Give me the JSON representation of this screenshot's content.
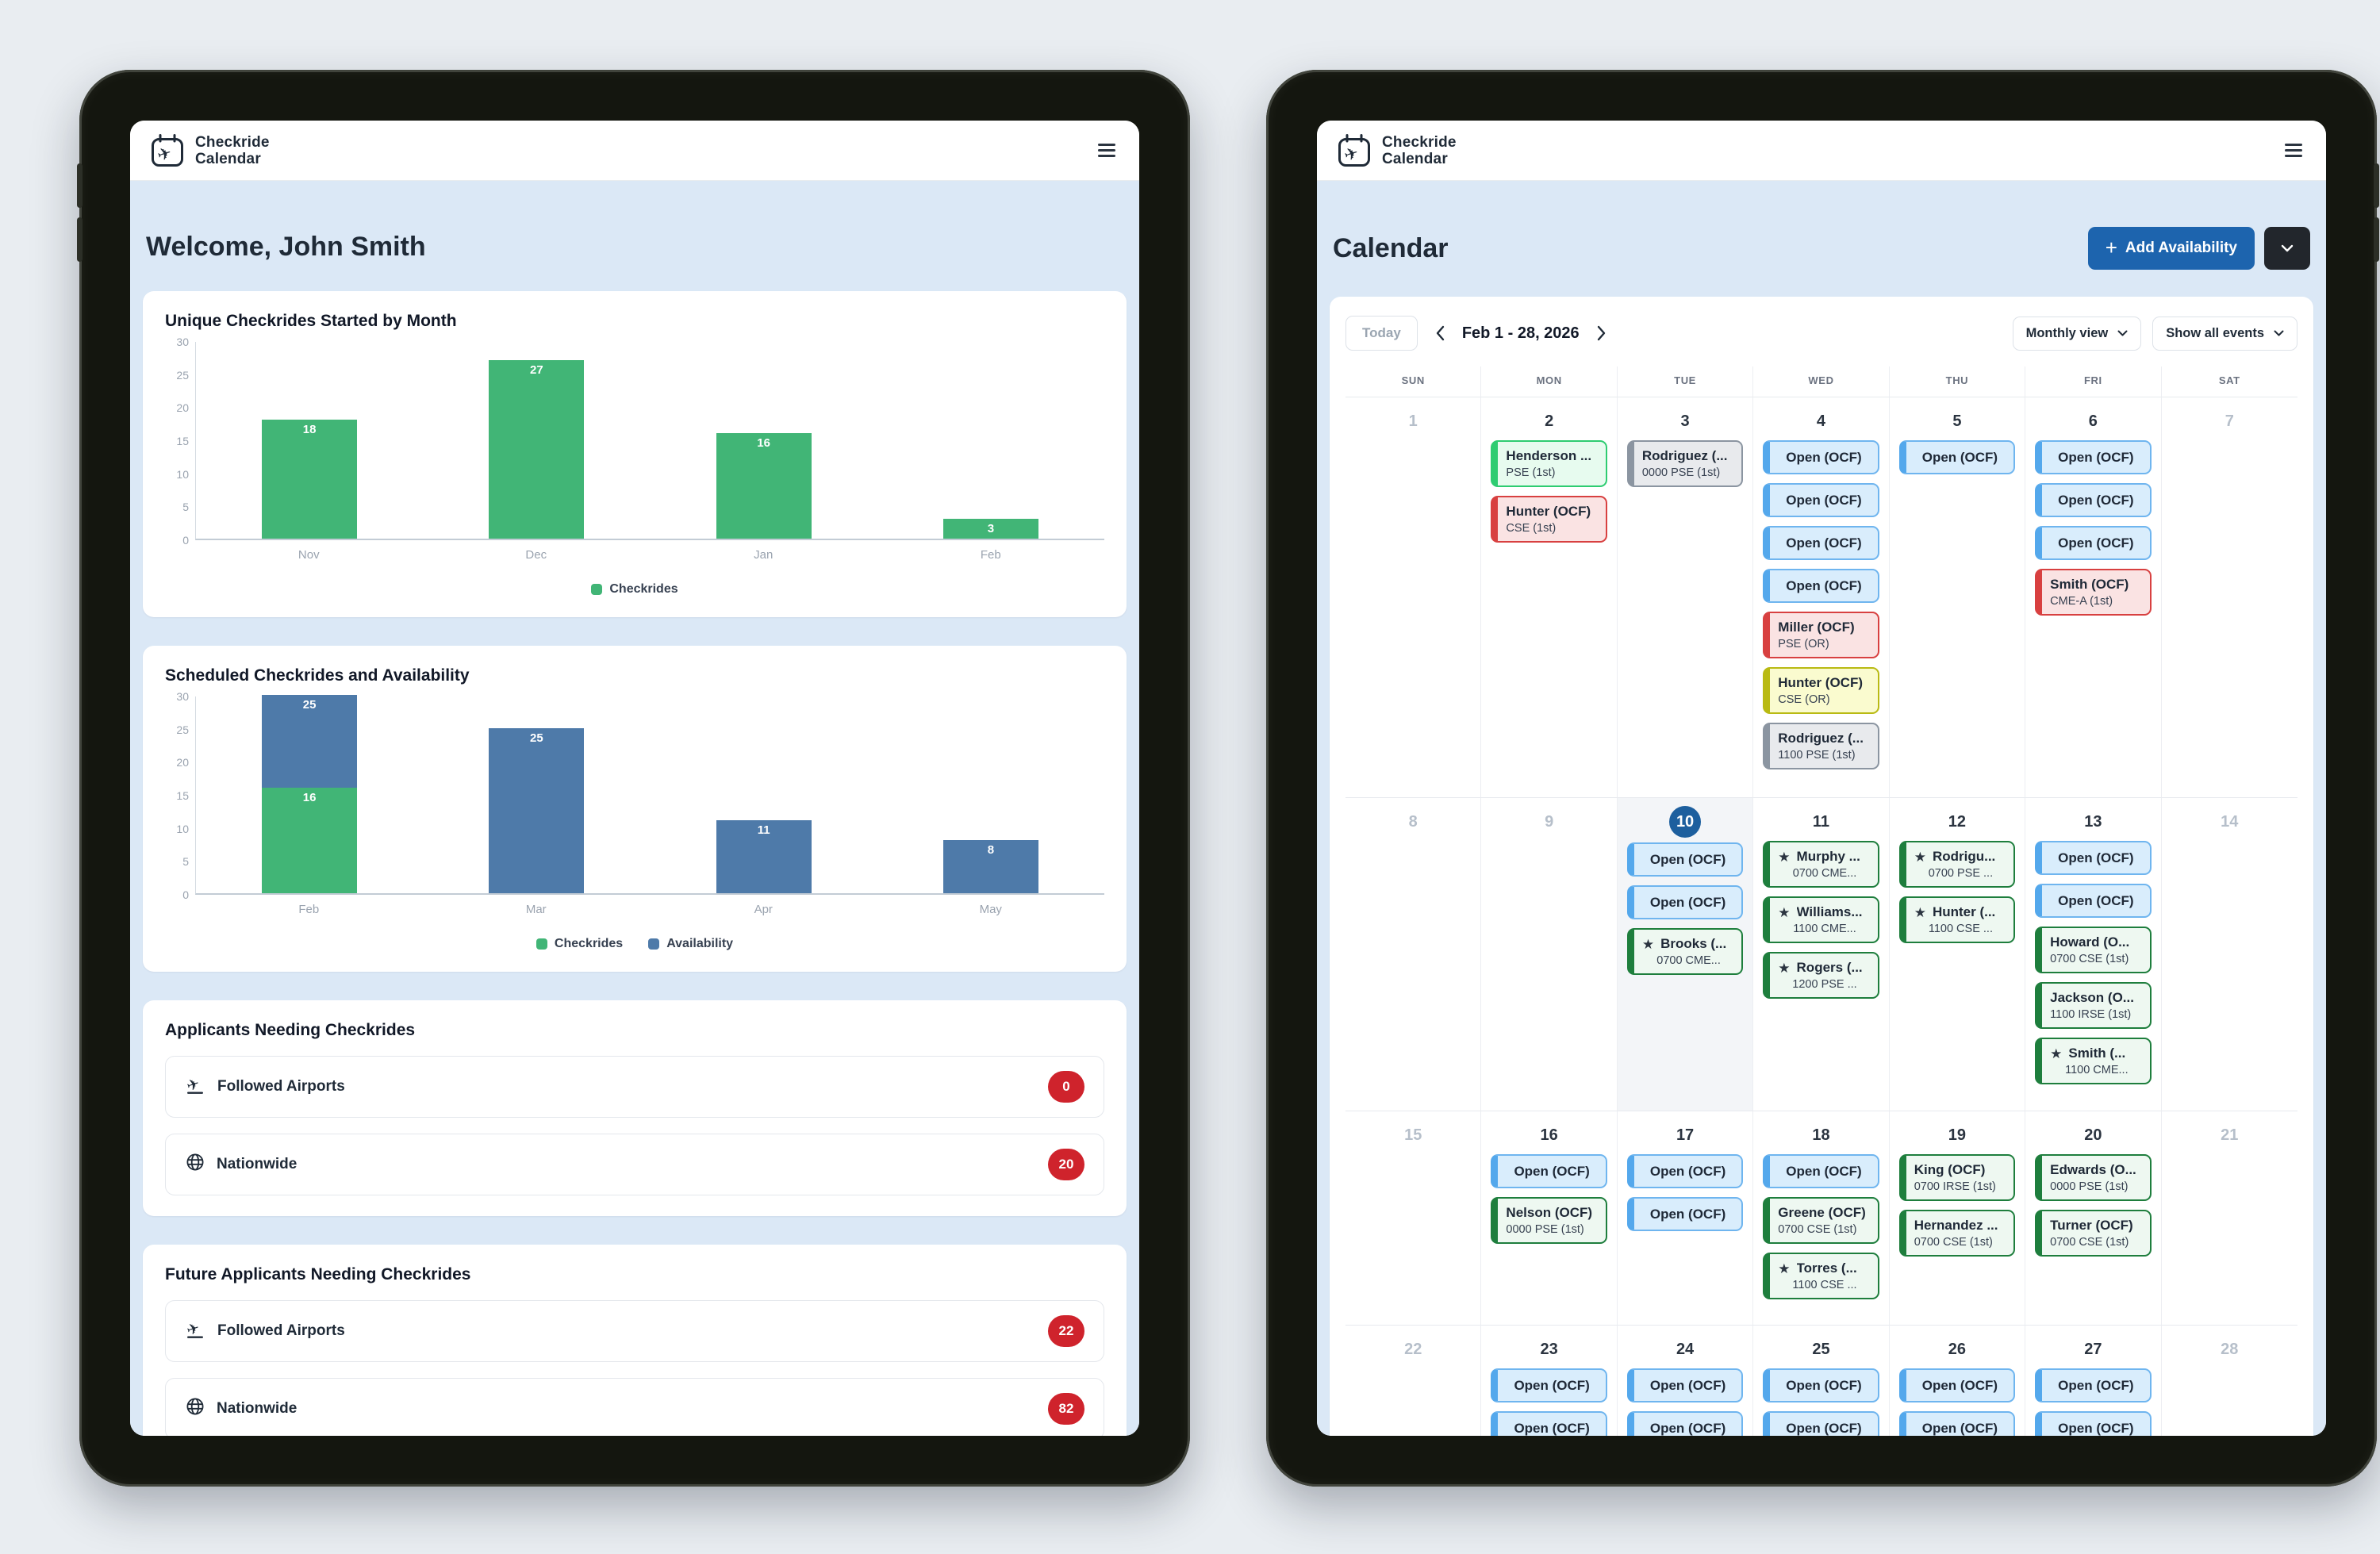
{
  "colors": {
    "page_background": "#e9edf1",
    "content_background": "#dbe8f6",
    "accent_blue": "#1d64ae",
    "badge_red": "#cf232c",
    "checkrides_green": "#41b576",
    "availability_blue": "#4e7aa9",
    "today_blue": "#1d5f9e"
  },
  "left_tablet": {
    "header": {
      "app_line1": "Checkride",
      "app_line2": "Calendar"
    },
    "welcome_heading": "Welcome, John Smith",
    "applicants": {
      "title": "Applicants Needing Checkrides",
      "rows": [
        {
          "icon": "plane-departure",
          "label": "Followed Airports",
          "count": "0"
        },
        {
          "icon": "globe",
          "label": "Nationwide",
          "count": "20"
        }
      ]
    },
    "future_applicants": {
      "title": "Future Applicants Needing Checkrides",
      "rows": [
        {
          "icon": "plane-departure",
          "label": "Followed Airports",
          "count": "22"
        },
        {
          "icon": "globe",
          "label": "Nationwide",
          "count": "82"
        }
      ]
    }
  },
  "right_tablet": {
    "header": {
      "app_line1": "Checkride",
      "app_line2": "Calendar"
    },
    "page_title": "Calendar",
    "actions": {
      "add_availability": "Add Availability"
    },
    "toolbar": {
      "today": "Today",
      "range": "Feb 1 - 28, 2026",
      "view_select": "Monthly view",
      "filter_select": "Show all events"
    },
    "calendar": {
      "weekday_headers": [
        "SUN",
        "MON",
        "TUE",
        "WED",
        "THU",
        "FRI",
        "SAT"
      ],
      "weeks": [
        {
          "days": [
            {
              "num": "1",
              "muted": true,
              "events": []
            },
            {
              "num": "2",
              "events": [
                {
                  "type": "green-bright",
                  "title": "Henderson ...",
                  "subtitle": "PSE (1st)"
                },
                {
                  "type": "red",
                  "title": "Hunter (OCF)",
                  "subtitle": "CSE (1st)"
                }
              ]
            },
            {
              "num": "3",
              "events": [
                {
                  "type": "gray",
                  "title": "Rodriguez (...",
                  "subtitle": "0000 PSE (1st)"
                }
              ]
            },
            {
              "num": "4",
              "events": [
                {
                  "type": "blue",
                  "title": "Open (OCF)"
                },
                {
                  "type": "blue",
                  "title": "Open (OCF)"
                },
                {
                  "type": "blue",
                  "title": "Open (OCF)"
                },
                {
                  "type": "blue",
                  "title": "Open (OCF)"
                },
                {
                  "type": "red",
                  "title": "Miller (OCF)",
                  "subtitle": "PSE (OR)"
                },
                {
                  "type": "yellow",
                  "title": "Hunter (OCF)",
                  "subtitle": "CSE (OR)"
                },
                {
                  "type": "gray",
                  "title": "Rodriguez (...",
                  "subtitle": "1100 PSE (1st)"
                }
              ]
            },
            {
              "num": "5",
              "events": [
                {
                  "type": "blue",
                  "title": "Open (OCF)"
                }
              ]
            },
            {
              "num": "6",
              "events": [
                {
                  "type": "blue",
                  "title": "Open (OCF)"
                },
                {
                  "type": "blue",
                  "title": "Open (OCF)"
                },
                {
                  "type": "blue",
                  "title": "Open (OCF)"
                },
                {
                  "type": "red",
                  "title": "Smith (OCF)",
                  "subtitle": "CME-A (1st)"
                }
              ]
            },
            {
              "num": "7",
              "muted": true,
              "events": []
            }
          ]
        },
        {
          "days": [
            {
              "num": "8",
              "muted": true,
              "events": []
            },
            {
              "num": "9",
              "muted": true,
              "events": []
            },
            {
              "num": "10",
              "today": true,
              "events": [
                {
                  "type": "blue",
                  "title": "Open (OCF)"
                },
                {
                  "type": "blue",
                  "title": "Open (OCF)"
                },
                {
                  "type": "green",
                  "star": true,
                  "title": "Brooks (...",
                  "subtitle": "0700 CME..."
                }
              ]
            },
            {
              "num": "11",
              "events": [
                {
                  "type": "green",
                  "star": true,
                  "title": "Murphy ...",
                  "subtitle": "0700 CME..."
                },
                {
                  "type": "green",
                  "star": true,
                  "title": "Williams...",
                  "subtitle": "1100 CME..."
                },
                {
                  "type": "green",
                  "star": true,
                  "title": "Rogers (...",
                  "subtitle": "1200 PSE ..."
                }
              ]
            },
            {
              "num": "12",
              "events": [
                {
                  "type": "green",
                  "star": true,
                  "title": "Rodrigu...",
                  "subtitle": "0700 PSE ..."
                },
                {
                  "type": "green",
                  "star": true,
                  "title": "Hunter (...",
                  "subtitle": "1100 CSE ..."
                }
              ]
            },
            {
              "num": "13",
              "events": [
                {
                  "type": "blue",
                  "title": "Open (OCF)"
                },
                {
                  "type": "blue",
                  "title": "Open (OCF)"
                },
                {
                  "type": "green",
                  "title": "Howard (O...",
                  "subtitle": "0700 CSE (1st)"
                },
                {
                  "type": "green",
                  "title": "Jackson (O...",
                  "subtitle": "1100 IRSE (1st)"
                },
                {
                  "type": "green",
                  "star": true,
                  "title": "Smith (...",
                  "subtitle": "1100 CME..."
                }
              ]
            },
            {
              "num": "14",
              "muted": true,
              "events": []
            }
          ]
        },
        {
          "days": [
            {
              "num": "15",
              "muted": true,
              "events": []
            },
            {
              "num": "16",
              "events": [
                {
                  "type": "blue",
                  "title": "Open (OCF)"
                },
                {
                  "type": "green",
                  "title": "Nelson (OCF)",
                  "subtitle": "0000 PSE (1st)"
                }
              ]
            },
            {
              "num": "17",
              "events": [
                {
                  "type": "blue",
                  "title": "Open (OCF)"
                },
                {
                  "type": "blue",
                  "title": "Open (OCF)"
                }
              ]
            },
            {
              "num": "18",
              "events": [
                {
                  "type": "blue",
                  "title": "Open (OCF)"
                },
                {
                  "type": "green",
                  "title": "Greene (OCF)",
                  "subtitle": "0700 CSE (1st)"
                },
                {
                  "type": "green",
                  "star": true,
                  "title": "Torres (...",
                  "subtitle": "1100 CSE ..."
                }
              ]
            },
            {
              "num": "19",
              "events": [
                {
                  "type": "green",
                  "title": "King (OCF)",
                  "subtitle": "0700 IRSE (1st)"
                },
                {
                  "type": "green",
                  "title": "Hernandez ...",
                  "subtitle": "0700 CSE (1st)"
                }
              ]
            },
            {
              "num": "20",
              "events": [
                {
                  "type": "green",
                  "title": "Edwards (O...",
                  "subtitle": "0000 PSE (1st)"
                },
                {
                  "type": "green",
                  "title": "Turner (OCF)",
                  "subtitle": "0700 CSE (1st)"
                }
              ]
            },
            {
              "num": "21",
              "muted": true,
              "events": []
            }
          ]
        },
        {
          "days": [
            {
              "num": "22",
              "muted": true,
              "events": []
            },
            {
              "num": "23",
              "events": [
                {
                  "type": "blue",
                  "title": "Open (OCF)"
                },
                {
                  "type": "blue",
                  "title": "Open (OCF)"
                }
              ]
            },
            {
              "num": "24",
              "events": [
                {
                  "type": "blue",
                  "title": "Open (OCF)"
                },
                {
                  "type": "blue",
                  "title": "Open (OCF)"
                }
              ]
            },
            {
              "num": "25",
              "events": [
                {
                  "type": "blue",
                  "title": "Open (OCF)"
                },
                {
                  "type": "blue",
                  "title": "Open (OCF)"
                }
              ]
            },
            {
              "num": "26",
              "events": [
                {
                  "type": "blue",
                  "title": "Open (OCF)"
                },
                {
                  "type": "blue",
                  "title": "Open (OCF)"
                }
              ]
            },
            {
              "num": "27",
              "events": [
                {
                  "type": "blue",
                  "title": "Open (OCF)"
                },
                {
                  "type": "blue",
                  "title": "Open (OCF)"
                }
              ]
            },
            {
              "num": "28",
              "muted": true,
              "events": []
            }
          ]
        }
      ]
    }
  },
  "chart_data": [
    {
      "type": "bar",
      "title": "Unique Checkrides Started by Month",
      "categories": [
        "Nov",
        "Dec",
        "Jan",
        "Feb"
      ],
      "series": [
        {
          "name": "Checkrides",
          "color": "#41b576",
          "values": [
            18,
            27,
            16,
            3
          ]
        }
      ],
      "ylim": [
        0,
        30
      ],
      "yticks": [
        0,
        5,
        10,
        15,
        20,
        25,
        30
      ],
      "grid": false,
      "legend_position": "bottom"
    },
    {
      "type": "bar",
      "stacked": true,
      "title": "Scheduled Checkrides and Availability",
      "categories": [
        "Feb",
        "Mar",
        "Apr",
        "May"
      ],
      "series": [
        {
          "name": "Checkrides",
          "color": "#41b576",
          "values": [
            16,
            0,
            0,
            0
          ]
        },
        {
          "name": "Availability",
          "color": "#4e7aa9",
          "values": [
            25,
            25,
            11,
            8
          ]
        }
      ],
      "ylim": [
        0,
        30
      ],
      "yticks": [
        0,
        5,
        10,
        15,
        20,
        25,
        30
      ],
      "grid": false,
      "legend_position": "bottom"
    }
  ]
}
